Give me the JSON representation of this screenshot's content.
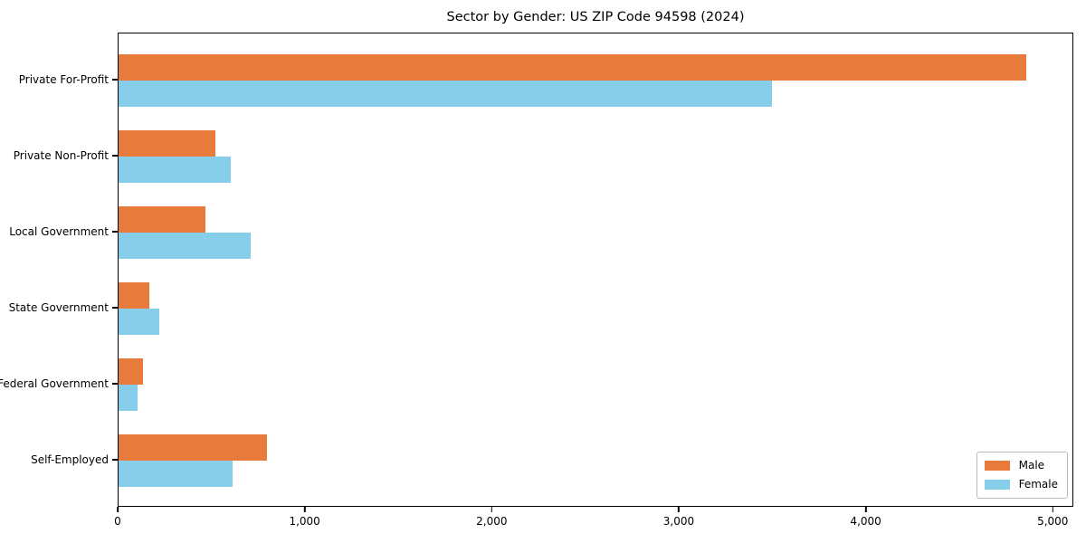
{
  "title": "Sector by Gender: US ZIP Code 94598 (2024)",
  "chart_data": {
    "type": "bar",
    "orientation": "horizontal",
    "title": "Sector by Gender: US ZIP Code 94598 (2024)",
    "xlabel": "",
    "ylabel": "",
    "categories": [
      "Private For-Profit",
      "Private Non-Profit",
      "Local Government",
      "State Government",
      "Federal Government",
      "Self-Employed"
    ],
    "series": [
      {
        "name": "Male",
        "color": "#E87A3C",
        "values": [
          4865,
          520,
          465,
          165,
          130,
          795
        ]
      },
      {
        "name": "Female",
        "color": "#87CEEB",
        "values": [
          3500,
          600,
          710,
          220,
          100,
          610
        ]
      }
    ],
    "xlim": [
      0,
      5110
    ],
    "xticks": [
      0,
      1000,
      2000,
      3000,
      4000,
      5000
    ],
    "xtick_labels": [
      "0",
      "1,000",
      "2,000",
      "3,000",
      "4,000",
      "5,000"
    ],
    "grid": false,
    "legend_position": "lower right",
    "colors": {
      "male": "#E87A3C",
      "female": "#87CEEB",
      "spine": "#000000",
      "legend_border": "#b9b9b9"
    }
  }
}
